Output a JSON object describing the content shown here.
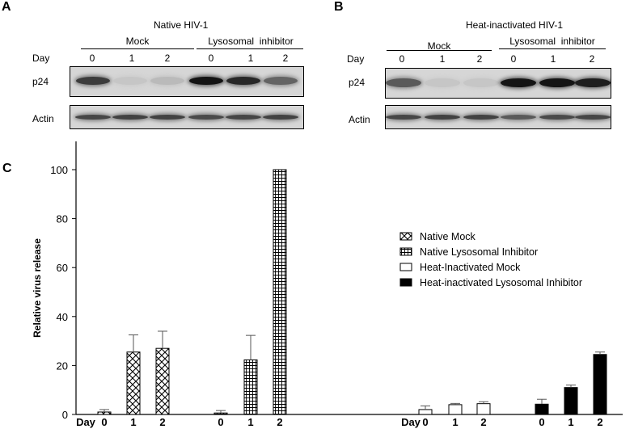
{
  "panels": {
    "a": {
      "letter": "A",
      "title": "Native HIV-1",
      "groups": [
        {
          "label": "Mock"
        },
        {
          "label": "Lysosomal  inhibitor"
        }
      ],
      "day_label": "Day",
      "lanes": [
        "0",
        "1",
        "2",
        "0",
        "1",
        "2"
      ],
      "rows": [
        {
          "label": "p24"
        },
        {
          "label": "Actin"
        }
      ],
      "p24_intensity": [
        0.75,
        0.06,
        0.12,
        0.95,
        0.85,
        0.55
      ],
      "actin_intensity": [
        0.7,
        0.72,
        0.72,
        0.68,
        0.7,
        0.72
      ]
    },
    "b": {
      "letter": "B",
      "title": "Heat-inactivated HIV-1",
      "groups": [
        {
          "label": "Mock"
        },
        {
          "label": "Lysosomal  inhibitor"
        }
      ],
      "day_label": "Day",
      "lanes": [
        "0",
        "1",
        "2",
        "0",
        "1",
        "2"
      ],
      "rows": [
        {
          "label": "p24"
        },
        {
          "label": "Actin"
        }
      ],
      "p24_intensity": [
        0.6,
        0.06,
        0.06,
        0.95,
        0.95,
        0.9
      ],
      "actin_intensity": [
        0.7,
        0.72,
        0.72,
        0.6,
        0.68,
        0.7
      ]
    },
    "c": {
      "letter": "C"
    }
  },
  "chart_data": {
    "type": "bar",
    "ylabel": "Relative virus release",
    "ylim": [
      0,
      110
    ],
    "yticks": [
      0,
      20,
      40,
      60,
      80,
      100
    ],
    "x_prefix": "Day",
    "groups": [
      {
        "series": "Native Mock",
        "days": [
          "0",
          "1",
          "2"
        ],
        "values": [
          1,
          25.5,
          27
        ],
        "errors": [
          1,
          7,
          7
        ]
      },
      {
        "series": "Native Lysosomal Inhibitor",
        "days": [
          "0",
          "1",
          "2"
        ],
        "values": [
          0.6,
          22.3,
          100
        ],
        "errors": [
          1,
          10,
          0
        ]
      },
      {
        "series": "Heat-Inactivated Mock",
        "days": [
          "0",
          "1",
          "2"
        ],
        "values": [
          2,
          4,
          4.4
        ],
        "errors": [
          1.5,
          0.5,
          0.8
        ]
      },
      {
        "series": "Heat-inactivated Lysosomal Inhibitor",
        "days": [
          "0",
          "1",
          "2"
        ],
        "values": [
          4.2,
          11,
          24.5
        ],
        "errors": [
          2,
          1,
          1
        ]
      }
    ],
    "legend": [
      {
        "label": "Native Mock",
        "pattern": "crosshatch"
      },
      {
        "label": "Native Lysosomal Inhibitor",
        "pattern": "grid"
      },
      {
        "label": "Heat-Inactivated Mock",
        "pattern": "white"
      },
      {
        "label": "Heat-inactivated Lysosomal Inhibitor",
        "pattern": "black"
      }
    ],
    "legend_position": "right"
  }
}
